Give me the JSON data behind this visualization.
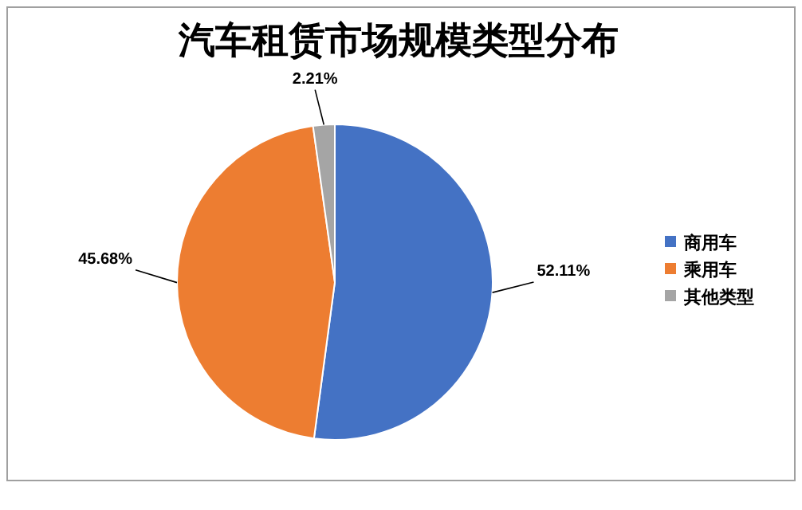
{
  "chart_data": {
    "type": "pie",
    "title": "汽车租赁市场规模类型分布",
    "categories": [
      "商用车",
      "乘用车",
      "其他类型"
    ],
    "values": [
      52.11,
      45.68,
      2.21
    ],
    "value_labels": [
      "52.11%",
      "45.68%",
      "2.21%"
    ],
    "colors": [
      "#4472c4",
      "#ed7d31",
      "#a5a5a5"
    ],
    "legend": "right"
  }
}
